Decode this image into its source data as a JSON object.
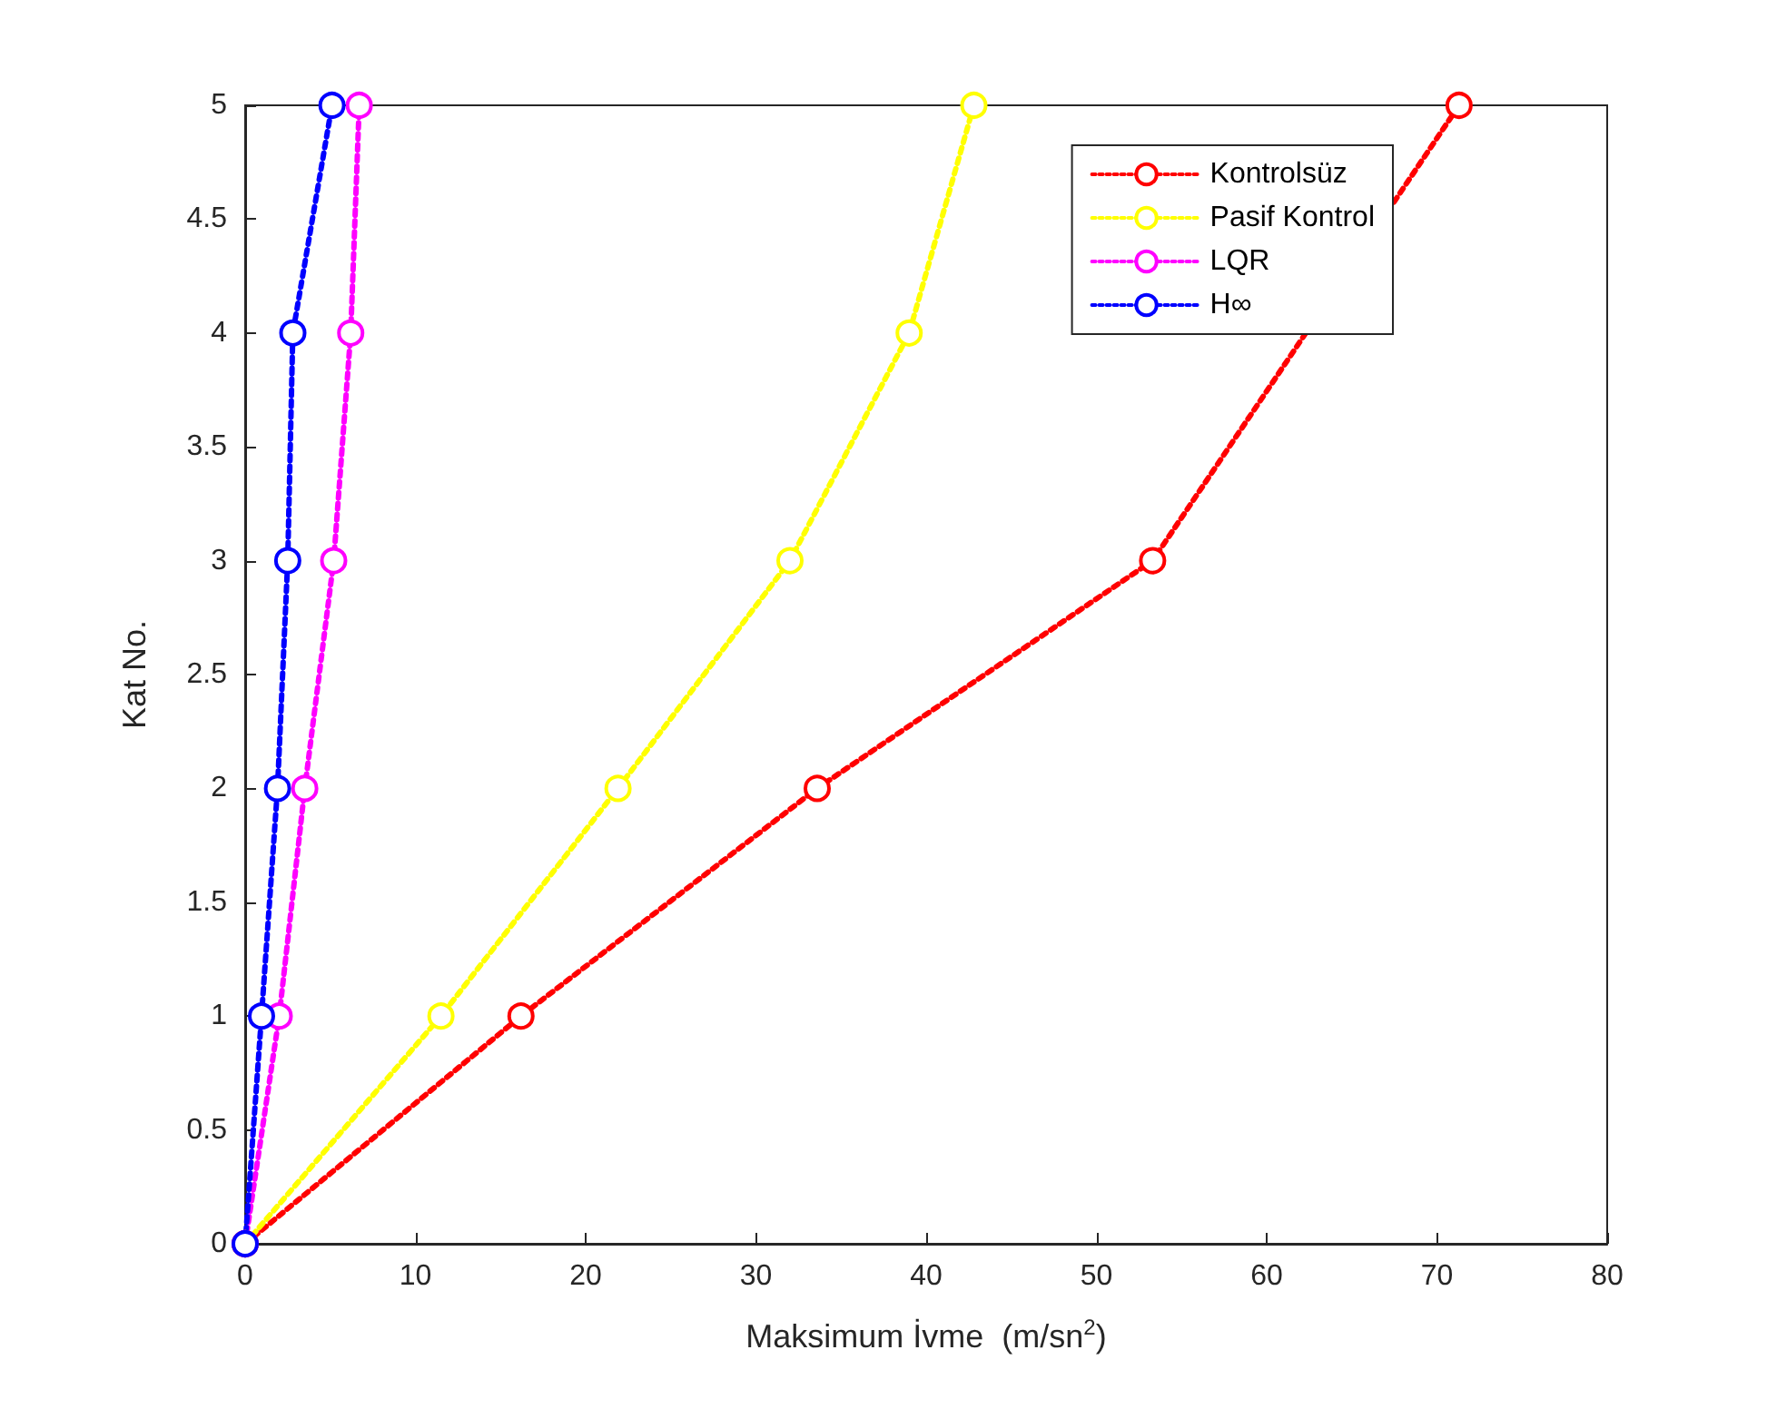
{
  "chart_data": {
    "type": "line",
    "xlabel": "Maksimum İvme  (m/sn$^{2}$)",
    "ylabel": "Kat No.",
    "xlim": [
      0,
      80
    ],
    "xticks": [
      0,
      10,
      20,
      30,
      40,
      50,
      60,
      70,
      80
    ],
    "ylim": [
      0,
      5
    ],
    "yticks": [
      0,
      0.5,
      1,
      1.5,
      2,
      2.5,
      3,
      3.5,
      4,
      4.5,
      5
    ],
    "grid": false,
    "legend": "top right",
    "marker": "circle",
    "line_style": "dotted",
    "series": [
      {
        "name": "Kontrolsüz",
        "color": "#ff0000",
        "x": [
          0,
          16.2,
          33.6,
          53.3,
          null,
          71.3
        ],
        "values": [
          0,
          1,
          2,
          3,
          null,
          5
        ]
      },
      {
        "name": "Pasif Kontrol",
        "color": "#ffff00",
        "x": [
          0,
          11.5,
          21.9,
          32.0,
          39.0,
          42.8
        ],
        "values": [
          0,
          1,
          2,
          3,
          4,
          5
        ]
      },
      {
        "name": "LQR",
        "color": "#ff00ff",
        "x": [
          0,
          2.0,
          3.5,
          5.2,
          6.2,
          6.7
        ],
        "values": [
          0,
          1,
          2,
          3,
          4,
          5
        ]
      },
      {
        "name": "H∞",
        "color": "#0000ff",
        "x": [
          0,
          0.96,
          1.9,
          2.5,
          2.8,
          5.1
        ],
        "values": [
          0,
          1,
          2,
          3,
          4,
          5
        ]
      }
    ]
  }
}
